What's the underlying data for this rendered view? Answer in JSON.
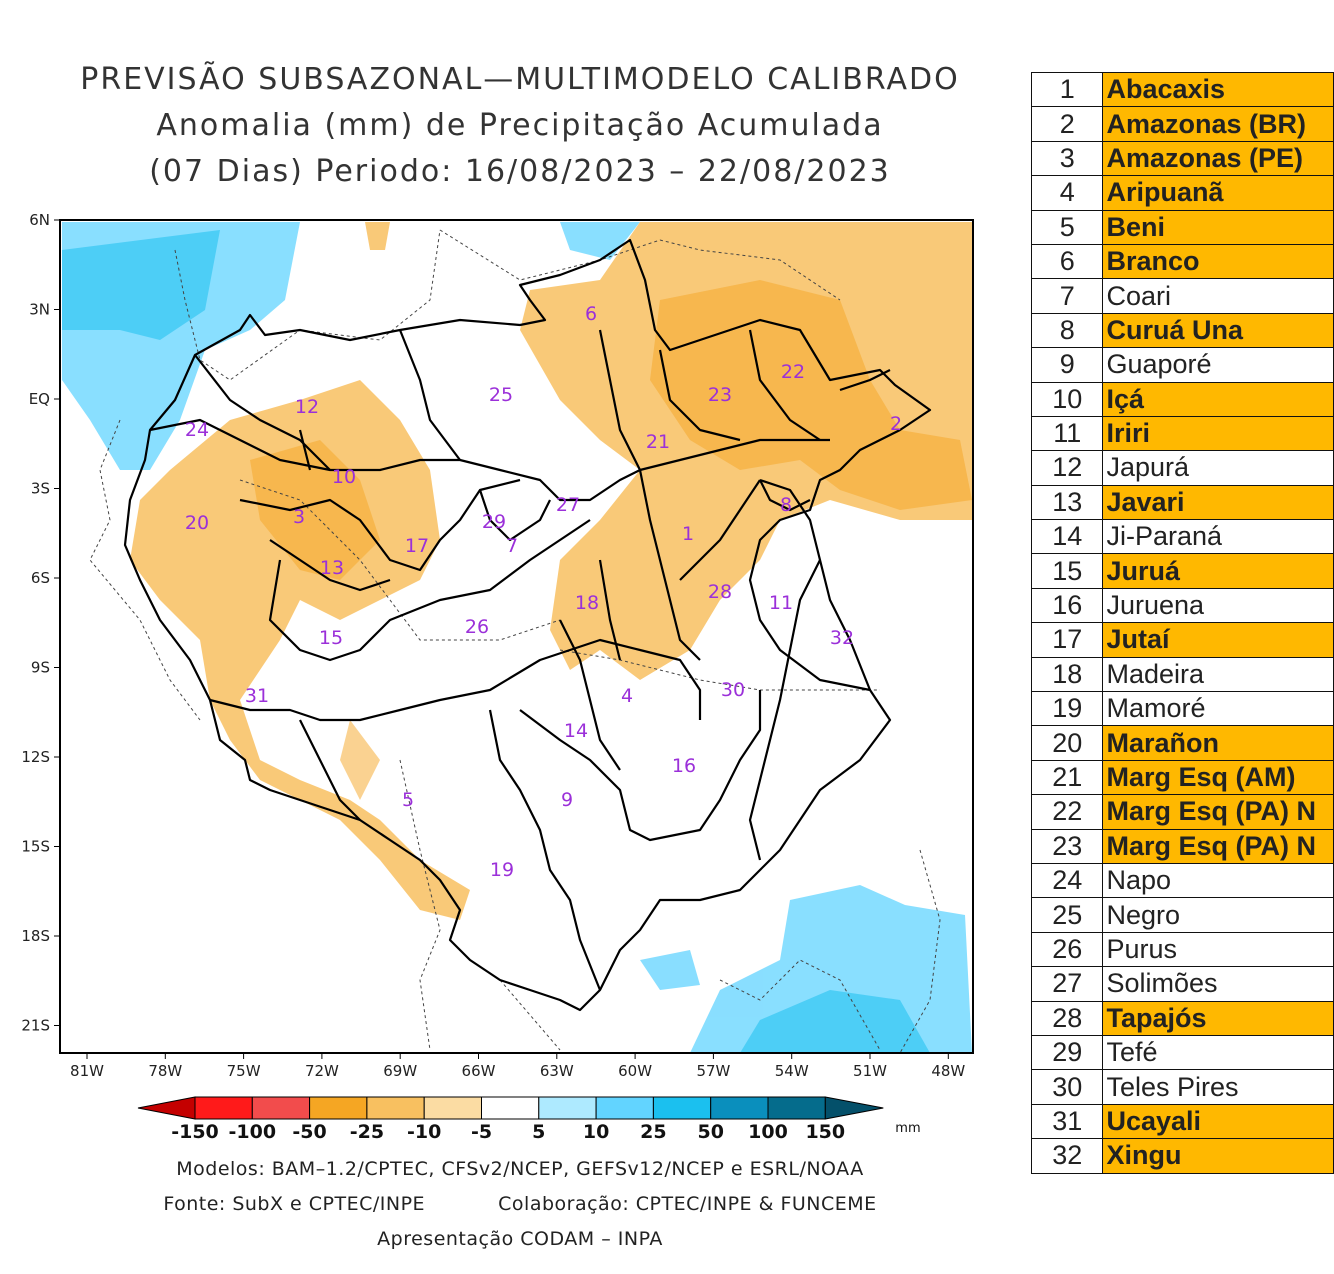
{
  "title": {
    "line1": "PREVISÃO SUBSAZONAL—MULTIMODELO CALIBRADO",
    "line2": "Anomalia (mm) de Precipitação Acumulada",
    "line3": "(07 Dias) Periodo: 16/08/2023 – 22/08/2023"
  },
  "axes": {
    "lat_labels": [
      "6N",
      "3N",
      "EQ",
      "3S",
      "6S",
      "9S",
      "12S",
      "15S",
      "18S",
      "21S"
    ],
    "lon_labels": [
      "81W",
      "78W",
      "75W",
      "72W",
      "69W",
      "66W",
      "63W",
      "60W",
      "57W",
      "54W",
      "51W",
      "48W"
    ]
  },
  "colorbar": {
    "unit": "mm",
    "labels": [
      "-150",
      "-100",
      "-50",
      "-25",
      "-10",
      "-5",
      "5",
      "10",
      "25",
      "50",
      "100",
      "150"
    ],
    "colors": [
      "#c40000",
      "#ff1a1a",
      "#f24c4c",
      "#f5a623",
      "#f8c060",
      "#fbdca3",
      "#ffffff",
      "#aeeaff",
      "#62d4ff",
      "#1bc0ef",
      "#0a8fbd",
      "#056c8c",
      "#04506a"
    ]
  },
  "basin_labels": [
    "1",
    "2",
    "3",
    "4",
    "5",
    "6",
    "7",
    "8",
    "9",
    "10",
    "11",
    "12",
    "13",
    "14",
    "15",
    "16",
    "17",
    "18",
    "19",
    "20",
    "21",
    "22",
    "23",
    "24",
    "25",
    "26",
    "27",
    "28",
    "29",
    "30",
    "31",
    "32"
  ],
  "credits": {
    "models": "Modelos: BAM–1.2/CPTEC, CFSv2/NCEP, GEFSv12/NCEP e ESRL/NOAA",
    "source": "Fonte: SubX e CPTEC/INPE",
    "collab": "Colaboração: CPTEC/INPE & FUNCEME",
    "presentation": "Apresentação CODAM – INPA"
  },
  "basins_table": [
    {
      "num": "1",
      "name": "Abacaxis",
      "highlight": true
    },
    {
      "num": "2",
      "name": "Amazonas (BR)",
      "highlight": true
    },
    {
      "num": "3",
      "name": "Amazonas (PE)",
      "highlight": true
    },
    {
      "num": "4",
      "name": "Aripuanã",
      "highlight": true
    },
    {
      "num": "5",
      "name": "Beni",
      "highlight": true
    },
    {
      "num": "6",
      "name": "Branco",
      "highlight": true
    },
    {
      "num": "7",
      "name": "Coari",
      "highlight": false
    },
    {
      "num": "8",
      "name": "Curuá Una",
      "highlight": true
    },
    {
      "num": "9",
      "name": "Guaporé",
      "highlight": false
    },
    {
      "num": "10",
      "name": "Içá",
      "highlight": true
    },
    {
      "num": "11",
      "name": "Iriri",
      "highlight": true
    },
    {
      "num": "12",
      "name": "Japurá",
      "highlight": false
    },
    {
      "num": "13",
      "name": "Javari",
      "highlight": true
    },
    {
      "num": "14",
      "name": "Ji-Paraná",
      "highlight": false
    },
    {
      "num": "15",
      "name": "Juruá",
      "highlight": true
    },
    {
      "num": "16",
      "name": "Juruena",
      "highlight": false
    },
    {
      "num": "17",
      "name": "Jutaí",
      "highlight": true
    },
    {
      "num": "18",
      "name": "Madeira",
      "highlight": false
    },
    {
      "num": "19",
      "name": "Mamoré",
      "highlight": false
    },
    {
      "num": "20",
      "name": "Marañon",
      "highlight": true
    },
    {
      "num": "21",
      "name": "Marg Esq (AM)",
      "highlight": true
    },
    {
      "num": "22",
      "name": "Marg Esq (PA) N",
      "highlight": true
    },
    {
      "num": "23",
      "name": "Marg Esq (PA) N",
      "highlight": true
    },
    {
      "num": "24",
      "name": "Napo",
      "highlight": false
    },
    {
      "num": "25",
      "name": "Negro",
      "highlight": false
    },
    {
      "num": "26",
      "name": "Purus",
      "highlight": false
    },
    {
      "num": "27",
      "name": "Solimões",
      "highlight": false
    },
    {
      "num": "28",
      "name": "Tapajós",
      "highlight": true
    },
    {
      "num": "29",
      "name": "Tefé",
      "highlight": false
    },
    {
      "num": "30",
      "name": "Teles Pires",
      "highlight": false
    },
    {
      "num": "31",
      "name": "Ucayali",
      "highlight": true
    },
    {
      "num": "32",
      "name": "Xingu",
      "highlight": true
    }
  ]
}
